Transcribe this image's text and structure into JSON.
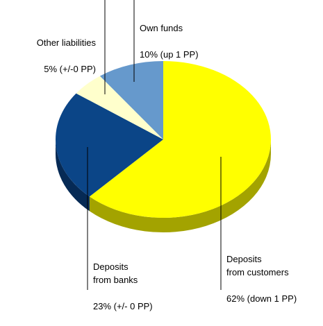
{
  "chart_data": {
    "type": "pie",
    "categories": [
      "Deposits\nfrom customers",
      "Deposits\nfrom banks",
      "Other liabilities",
      "Own funds"
    ],
    "values": [
      62,
      23,
      5,
      10
    ],
    "value_labels": [
      "62% (down 1 PP)",
      "23% (+/- 0 PP)",
      "5% (+/-0 PP)",
      "10% (up 1 PP)"
    ],
    "colors": [
      "#ffff00",
      "#0b4587",
      "#ffffcc",
      "#6699cc"
    ],
    "side_colors": [
      "#a3a300",
      "#062a55",
      "#b3b38f",
      "#44668a"
    ],
    "three_d": true
  }
}
